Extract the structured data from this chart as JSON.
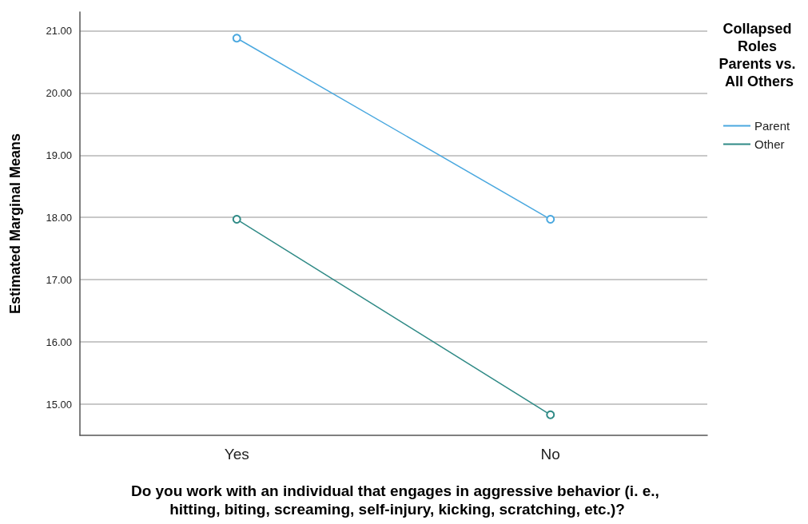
{
  "chart_data": {
    "type": "line",
    "xlabel": "Do you work with an individual that engages in aggressive behavior (i. e., hitting, biting, screaming, self-injury, kicking, scratching, etc.)?",
    "ylabel": "Estimated Marginal Means",
    "legend_title": "Collapsed Roles Parents vs. All Others",
    "categories": [
      "Yes",
      "No"
    ],
    "series": [
      {
        "name": "Parent",
        "color": "#4aa8df",
        "values": [
          20.88,
          17.97
        ]
      },
      {
        "name": "Other",
        "color": "#2f8a86",
        "values": [
          17.97,
          14.83
        ]
      }
    ],
    "ylim": [
      14.5,
      21.3
    ],
    "yticks": [
      {
        "value": 15,
        "label": "15.00"
      },
      {
        "value": 16,
        "label": "16.00"
      },
      {
        "value": 17,
        "label": "17.00"
      },
      {
        "value": 18,
        "label": "18.00"
      },
      {
        "value": 19,
        "label": "19.00"
      },
      {
        "value": 20,
        "label": "20.00"
      },
      {
        "value": 21,
        "label": "21.00"
      }
    ],
    "grid": "y",
    "legend": "top right",
    "marker": "circle",
    "line_style": "solid"
  }
}
